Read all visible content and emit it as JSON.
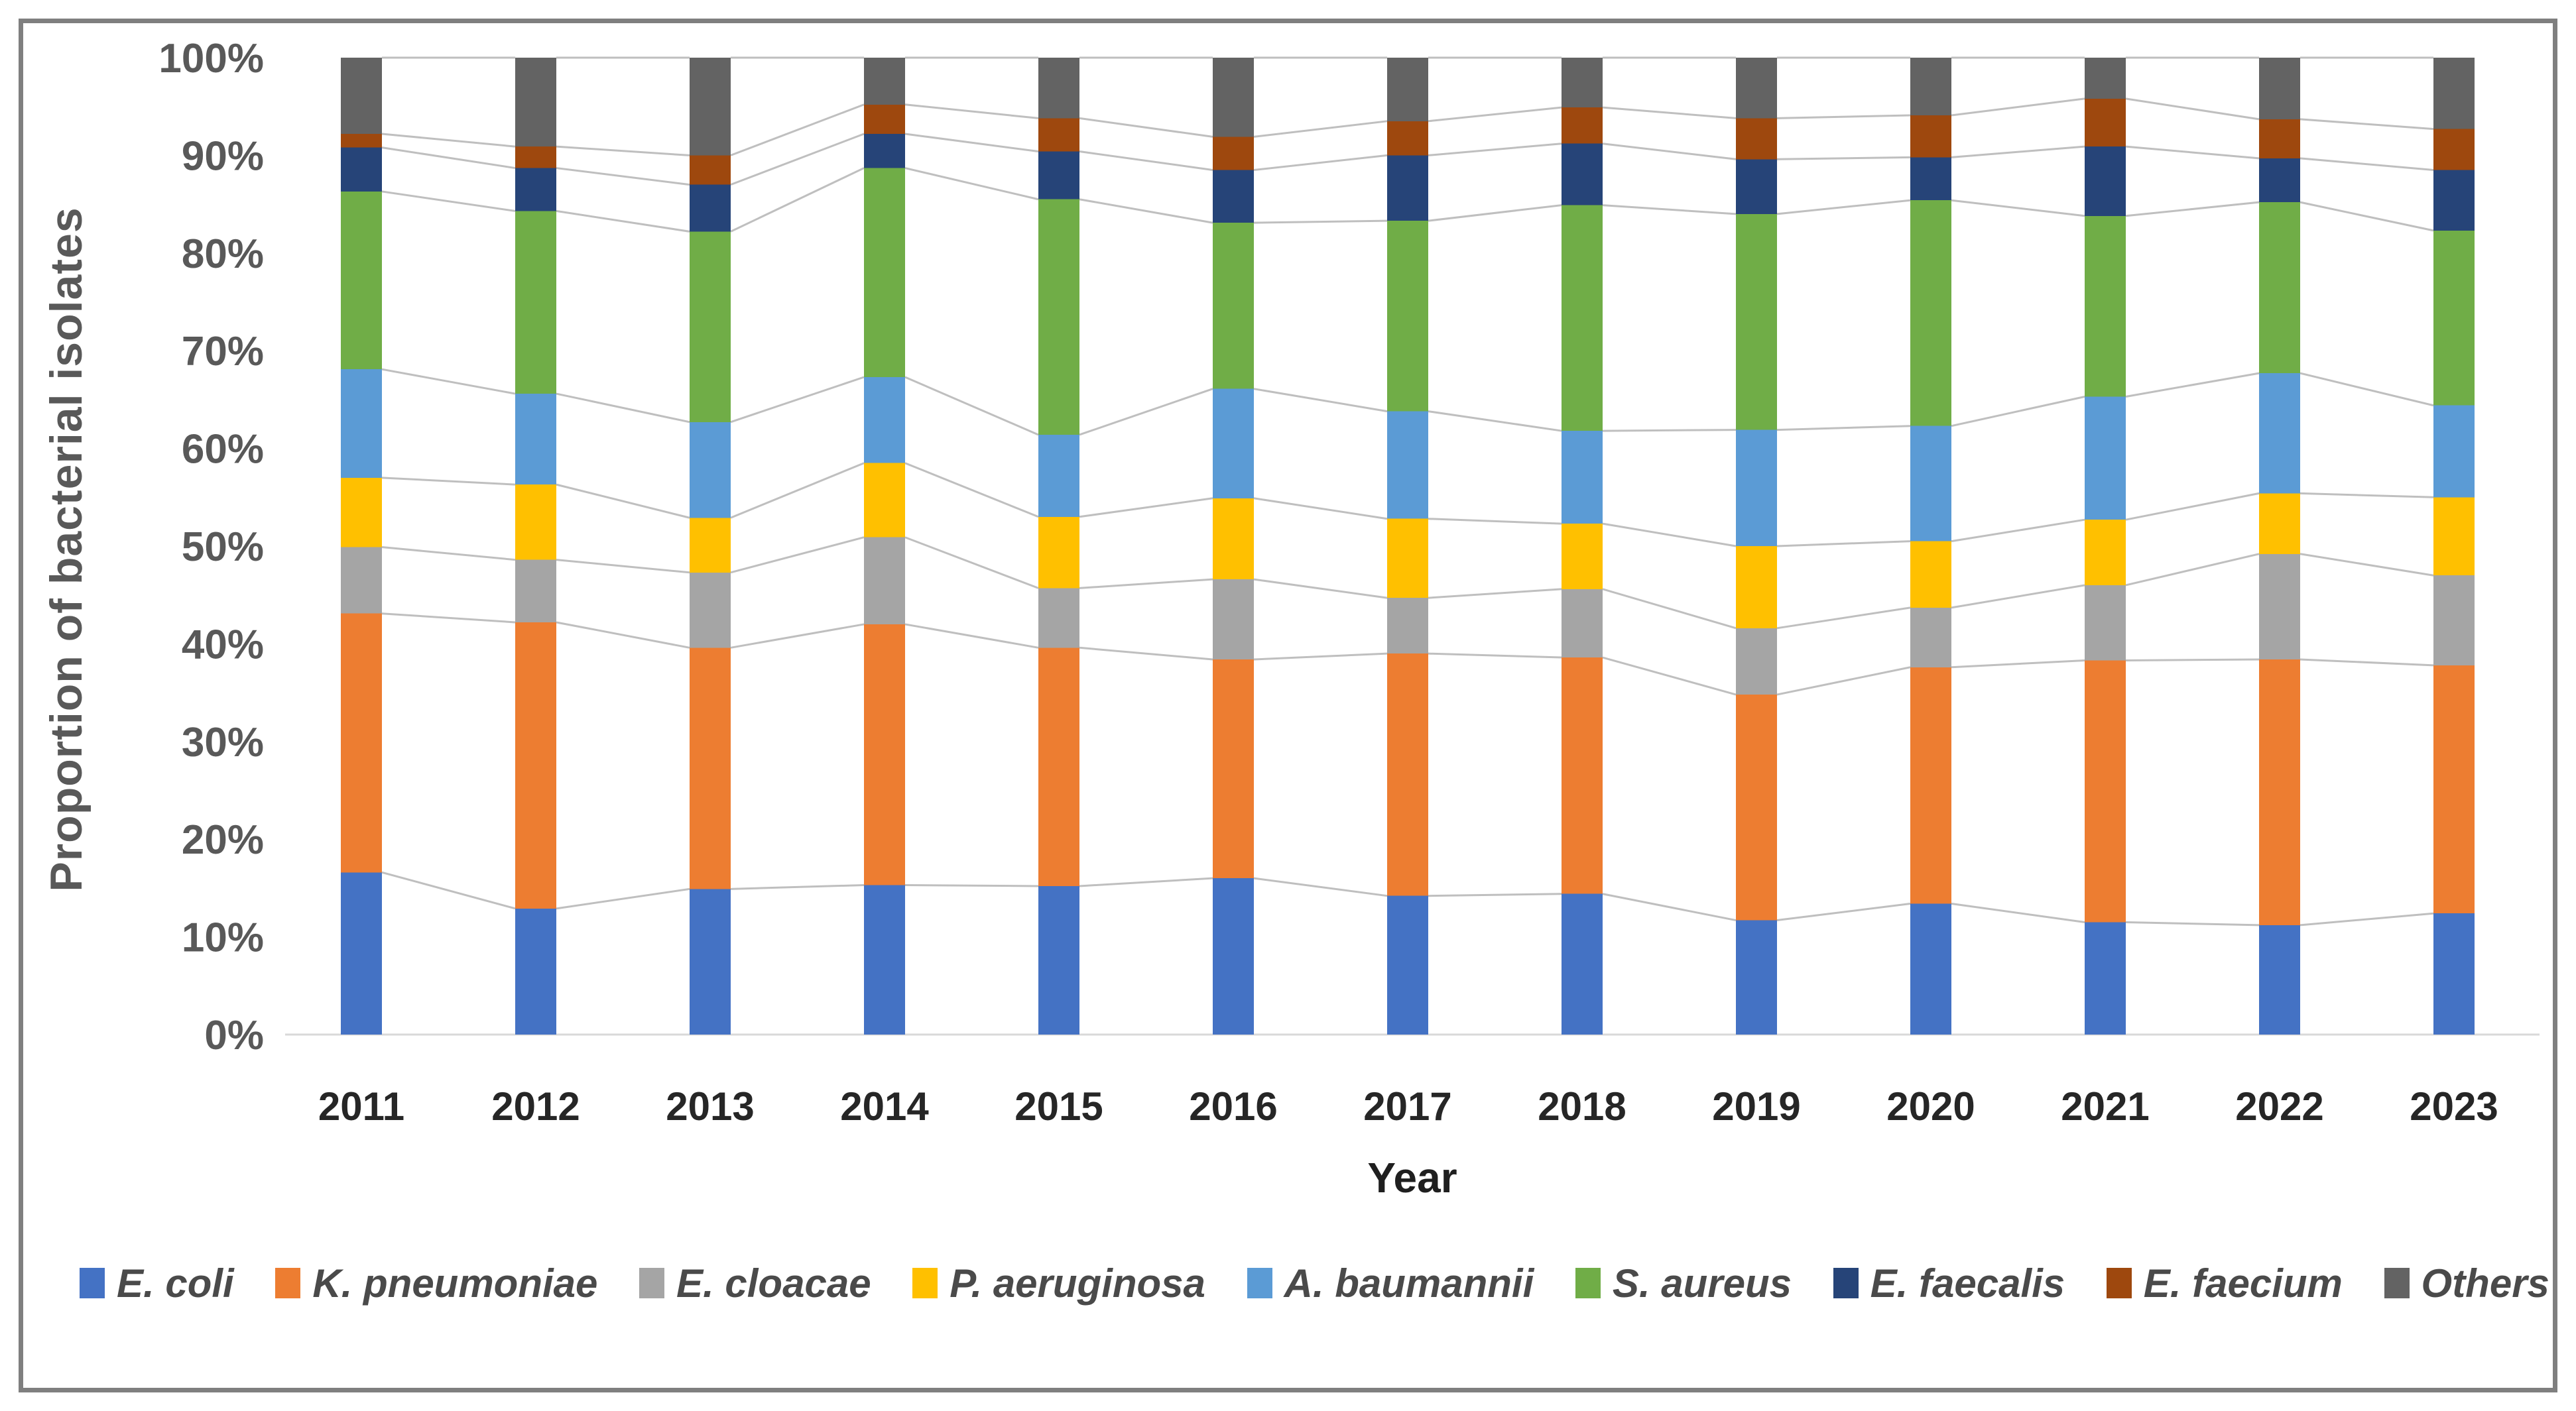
{
  "figure": {
    "background_color": "#ffffff",
    "border_color": "#7f7f7f"
  },
  "chart_data": {
    "type": "bar",
    "variant": "stacked-100",
    "title": "",
    "xlabel": "Year",
    "ylabel": "Proportion of bacterial isolates",
    "ylim": [
      0,
      100
    ],
    "grid": "off",
    "legend_position": "bottom",
    "y_ticks": [
      "0%",
      "10%",
      "20%",
      "30%",
      "40%",
      "50%",
      "60%",
      "70%",
      "80%",
      "90%",
      "100%"
    ],
    "categories": [
      "2011",
      "2012",
      "2013",
      "2014",
      "2015",
      "2016",
      "2017",
      "2018",
      "2019",
      "2020",
      "2021",
      "2022",
      "2023"
    ],
    "series": [
      {
        "name": "E. coli",
        "color": "#4472C4",
        "values": [
          16.6,
          12.9,
          14.9,
          15.3,
          15.2,
          16.0,
          14.2,
          14.4,
          11.7,
          13.4,
          11.5,
          11.2,
          12.4
        ]
      },
      {
        "name": "K. pneumoniae",
        "color": "#ED7D31",
        "values": [
          26.5,
          29.3,
          24.7,
          26.7,
          24.4,
          22.4,
          24.8,
          24.2,
          23.1,
          24.2,
          26.8,
          27.2,
          25.4
        ]
      },
      {
        "name": "E. cloacae",
        "color": "#A5A5A5",
        "values": [
          6.8,
          6.4,
          7.7,
          8.9,
          6.1,
          8.2,
          5.7,
          7.0,
          6.8,
          6.1,
          7.7,
          10.8,
          9.2
        ]
      },
      {
        "name": "P. aeruginosa",
        "color": "#FFC000",
        "values": [
          7.1,
          7.7,
          5.6,
          7.6,
          7.3,
          8.3,
          8.1,
          6.7,
          8.4,
          6.8,
          6.7,
          6.2,
          8.0
        ]
      },
      {
        "name": "A. baumannii",
        "color": "#5B9BD5",
        "values": [
          11.1,
          9.3,
          9.8,
          8.8,
          8.4,
          11.2,
          11.0,
          9.5,
          11.9,
          11.8,
          12.6,
          12.3,
          9.4
        ]
      },
      {
        "name": "S. aureus",
        "color": "#70AD47",
        "values": [
          18.2,
          18.7,
          19.5,
          21.4,
          24.1,
          17.0,
          19.5,
          23.1,
          22.1,
          23.1,
          18.5,
          17.5,
          17.9
        ]
      },
      {
        "name": "E. faecalis",
        "color": "#264478",
        "values": [
          4.5,
          4.4,
          4.8,
          3.5,
          4.9,
          5.4,
          6.7,
          6.3,
          5.6,
          4.4,
          7.1,
          4.5,
          6.2
        ]
      },
      {
        "name": "E. faecium",
        "color": "#9E480E",
        "values": [
          1.4,
          2.2,
          3.0,
          3.0,
          3.4,
          3.4,
          3.5,
          3.7,
          4.2,
          4.3,
          4.9,
          4.0,
          4.2
        ]
      },
      {
        "name": "Others",
        "color": "#636363",
        "values": [
          7.8,
          9.1,
          10.0,
          4.8,
          6.2,
          8.1,
          6.5,
          5.1,
          6.2,
          5.9,
          4.2,
          6.3,
          7.3
        ]
      }
    ],
    "series_line_color": "#BFBFBF",
    "axis_line_color": "#D9D9D9",
    "tick_label_color": "#595959",
    "x_label_color": "#262626"
  }
}
